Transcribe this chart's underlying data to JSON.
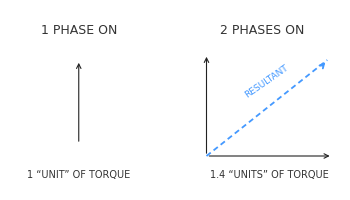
{
  "bg_color": "#ffffff",
  "title_left": "1 PHASE ON",
  "title_right": "2 PHASES ON",
  "label_left": "1 “UNIT” OF TORQUE",
  "label_right": "1.4 “UNITS” OF TORQUE",
  "title_fontsize": 9.0,
  "label_fontsize": 7.0,
  "resultant_label": "RESULTANT",
  "resultant_color": "#4499ff",
  "arrow_color": "#222222",
  "axis_color": "#222222",
  "text_color": "#333333"
}
